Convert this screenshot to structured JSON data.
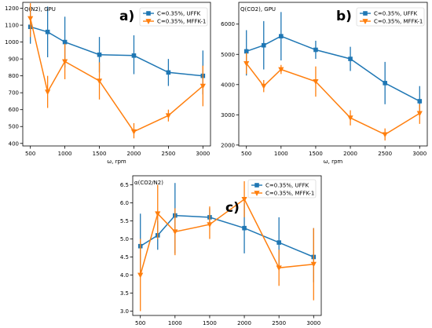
{
  "colors": {
    "uffk": "#1f77b4",
    "mffk": "#ff7f0e",
    "axis": "#000000"
  },
  "chart_data": [
    {
      "type": "line",
      "panel_label": "a)",
      "ylabel": "Q(N2), GPU",
      "xlabel": "ω, rpm",
      "x": [
        500,
        750,
        1000,
        1500,
        2000,
        2500,
        3000
      ],
      "xticks": [
        500,
        1000,
        1500,
        2000,
        2500,
        3000
      ],
      "yticks": [
        400,
        500,
        600,
        700,
        800,
        900,
        1000,
        1100,
        1200
      ],
      "xlim": [
        390,
        3110
      ],
      "ylim": [
        385,
        1235
      ],
      "legend": "top-right",
      "series": [
        {
          "name": "C=0.35%, UFFK",
          "marker": "square",
          "values": [
            1090,
            1060,
            1000,
            925,
            920,
            820,
            800
          ],
          "err_low": [
            990,
            910,
            850,
            820,
            810,
            740,
            690
          ],
          "err_high": [
            1180,
            1210,
            1150,
            1030,
            1040,
            900,
            950
          ]
        },
        {
          "name": "C=0.35%, MFFK-1",
          "marker": "triangle-down",
          "values": [
            1140,
            705,
            885,
            770,
            470,
            565,
            740
          ],
          "err_low": [
            1030,
            610,
            780,
            660,
            430,
            530,
            620
          ],
          "err_high": [
            1230,
            800,
            990,
            880,
            520,
            600,
            860
          ]
        }
      ]
    },
    {
      "type": "line",
      "panel_label": "b)",
      "ylabel": "Q(CO2), GPU",
      "xlabel": "ω, rpm",
      "x": [
        500,
        750,
        1000,
        1500,
        2000,
        2500,
        3000
      ],
      "xticks": [
        500,
        1000,
        1500,
        2000,
        2500,
        3000
      ],
      "yticks": [
        2000,
        3000,
        4000,
        5000,
        6000
      ],
      "xlim": [
        390,
        3110
      ],
      "ylim": [
        1970,
        6720
      ],
      "legend": "top-right",
      "series": [
        {
          "name": "C=0.35%, UFFK",
          "marker": "square",
          "values": [
            5100,
            5300,
            5600,
            5150,
            4850,
            4050,
            3450
          ],
          "err_low": [
            4300,
            4500,
            4800,
            4850,
            4450,
            3350,
            3000
          ],
          "err_high": [
            5800,
            6100,
            6400,
            5450,
            5250,
            4750,
            3950
          ]
        },
        {
          "name": "C=0.35%, MFFK-1",
          "marker": "triangle-down",
          "values": [
            4700,
            3950,
            4500,
            4100,
            2900,
            2350,
            3050
          ],
          "err_low": [
            4350,
            3750,
            4350,
            3600,
            2650,
            2150,
            2700
          ],
          "err_high": [
            5050,
            4150,
            4650,
            4600,
            3150,
            2550,
            3350
          ]
        }
      ]
    },
    {
      "type": "line",
      "panel_label": "c)",
      "ylabel": "α(CO2/N2)",
      "xlabel": "ω, rpm",
      "x": [
        500,
        750,
        1000,
        1500,
        2000,
        2500,
        3000
      ],
      "xticks": [
        500,
        1000,
        1500,
        2000,
        2500,
        3000
      ],
      "yticks": [
        3.0,
        3.5,
        4.0,
        4.5,
        5.0,
        5.5,
        6.0,
        6.5
      ],
      "xlim": [
        390,
        3110
      ],
      "ylim": [
        2.88,
        6.75
      ],
      "legend": "top-right",
      "series": [
        {
          "name": "C=0.35%, UFFK",
          "marker": "square",
          "values": [
            4.8,
            5.1,
            5.65,
            5.6,
            5.3,
            4.9,
            4.5
          ],
          "err_low": [
            4.0,
            4.7,
            4.6,
            5.35,
            4.6,
            4.2,
            3.8
          ],
          "err_high": [
            5.7,
            5.5,
            6.55,
            5.85,
            6.0,
            5.6,
            5.3
          ]
        },
        {
          "name": "C=0.35%, MFFK-1",
          "marker": "triangle-down",
          "values": [
            4.0,
            5.7,
            5.2,
            5.4,
            6.1,
            4.2,
            4.3
          ],
          "err_low": [
            3.0,
            5.0,
            4.55,
            5.0,
            5.6,
            3.7,
            3.3
          ],
          "err_high": [
            5.0,
            6.5,
            5.85,
            5.9,
            6.6,
            4.7,
            5.3
          ]
        }
      ]
    }
  ]
}
